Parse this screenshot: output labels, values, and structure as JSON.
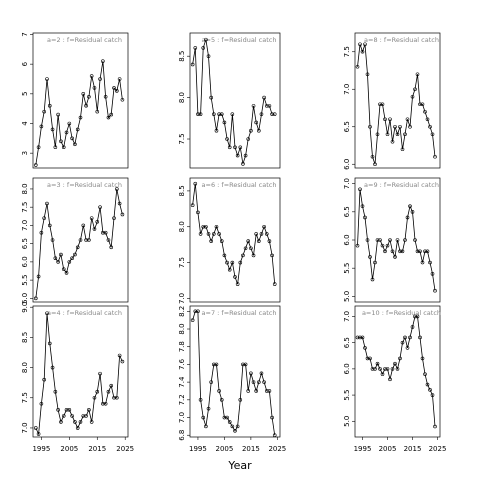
{
  "x_label": "Year",
  "chart_data": [
    {
      "type": "line",
      "title": "a=2 : f=Residual catch",
      "x": [
        1993,
        1994,
        1995,
        1996,
        1997,
        1998,
        1999,
        2000,
        2001,
        2002,
        2003,
        2004,
        2005,
        2006,
        2007,
        2008,
        2009,
        2010,
        2011,
        2012,
        2013,
        2014,
        2015,
        2016,
        2017,
        2018,
        2019,
        2020,
        2021,
        2022,
        2023,
        2024
      ],
      "values": [
        2.6,
        3.2,
        3.9,
        4.4,
        5.5,
        4.6,
        3.8,
        3.2,
        4.3,
        3.4,
        3.2,
        3.7,
        4.0,
        3.5,
        3.3,
        3.8,
        4.2,
        5.0,
        4.6,
        4.9,
        5.6,
        5.2,
        4.4,
        5.5,
        6.1,
        4.9,
        4.2,
        4.3,
        5.2,
        5.1,
        5.5,
        4.8
      ],
      "xlim": [
        1992,
        2026
      ],
      "ylim": [
        2.5,
        7.05
      ],
      "yticks": [
        3,
        4,
        5,
        6,
        7
      ]
    },
    {
      "type": "line",
      "title": "a=5 : f=Residual catch",
      "x": [
        1993,
        1994,
        1995,
        1996,
        1997,
        1998,
        1999,
        2000,
        2001,
        2002,
        2003,
        2004,
        2005,
        2006,
        2007,
        2008,
        2009,
        2010,
        2011,
        2012,
        2013,
        2014,
        2015,
        2016,
        2017,
        2018,
        2019,
        2020,
        2021,
        2022,
        2023,
        2024
      ],
      "values": [
        8.4,
        8.6,
        7.8,
        7.8,
        8.6,
        8.7,
        8.5,
        8.0,
        7.8,
        7.6,
        7.8,
        7.8,
        7.7,
        7.5,
        7.4,
        7.8,
        7.4,
        7.3,
        7.4,
        7.2,
        7.3,
        7.5,
        7.6,
        7.9,
        7.7,
        7.6,
        7.8,
        8.0,
        7.9,
        7.9,
        7.8,
        7.8
      ],
      "xlim": [
        1992,
        2026
      ],
      "ylim": [
        7.15,
        8.78
      ],
      "yticks": [
        7.5,
        {
          "value": 8,
          "label": "8.0"
        },
        8.5
      ]
    },
    {
      "type": "line",
      "title": "a=8 : f=Residual catch",
      "x": [
        1993,
        1994,
        1995,
        1996,
        1997,
        1998,
        1999,
        2000,
        2001,
        2002,
        2003,
        2004,
        2005,
        2006,
        2007,
        2008,
        2009,
        2010,
        2011,
        2012,
        2013,
        2014,
        2015,
        2016,
        2017,
        2018,
        2019,
        2020,
        2021,
        2022,
        2023,
        2024
      ],
      "values": [
        7.3,
        7.6,
        7.5,
        7.6,
        7.2,
        6.5,
        6.1,
        6.0,
        6.4,
        6.8,
        6.8,
        6.6,
        6.4,
        6.6,
        6.3,
        6.5,
        6.4,
        6.5,
        6.2,
        6.4,
        6.6,
        6.5,
        6.9,
        7.0,
        7.2,
        6.8,
        6.8,
        6.7,
        6.6,
        6.5,
        6.4,
        6.1
      ],
      "xlim": [
        1992,
        2026
      ],
      "ylim": [
        5.95,
        7.75
      ],
      "yticks": [
        {
          "value": 6,
          "label": "6.0"
        },
        6.5,
        {
          "value": 7,
          "label": "7.0"
        },
        7.5
      ]
    },
    {
      "type": "line",
      "title": "a=3 : f=Residual catch",
      "x": [
        1993,
        1994,
        1995,
        1996,
        1997,
        1998,
        1999,
        2000,
        2001,
        2002,
        2003,
        2004,
        2005,
        2006,
        2007,
        2008,
        2009,
        2010,
        2011,
        2012,
        2013,
        2014,
        2015,
        2016,
        2017,
        2018,
        2019,
        2020,
        2021,
        2022,
        2023,
        2024
      ],
      "values": [
        5.0,
        5.6,
        6.8,
        7.2,
        7.6,
        7.0,
        6.6,
        6.1,
        6.0,
        6.2,
        5.8,
        5.7,
        6.0,
        6.1,
        6.2,
        6.4,
        6.6,
        7.0,
        6.6,
        6.6,
        7.2,
        6.9,
        7.1,
        7.5,
        6.8,
        6.8,
        6.6,
        6.4,
        7.2,
        8.0,
        7.6,
        7.3
      ],
      "xlim": [
        1992,
        2026
      ],
      "ylim": [
        4.9,
        8.3
      ],
      "yticks": [
        {
          "value": 5,
          "label": "5.0"
        },
        5.5,
        {
          "value": 6,
          "label": "6.0"
        },
        6.5,
        {
          "value": 7,
          "label": "7.0"
        },
        7.5,
        {
          "value": 8,
          "label": "8.0"
        }
      ]
    },
    {
      "type": "line",
      "title": "a=6 : f=Residual catch",
      "x": [
        1993,
        1994,
        1995,
        1996,
        1997,
        1998,
        1999,
        2000,
        2001,
        2002,
        2003,
        2004,
        2005,
        2006,
        2007,
        2008,
        2009,
        2010,
        2011,
        2012,
        2013,
        2014,
        2015,
        2016,
        2017,
        2018,
        2019,
        2020,
        2021,
        2022,
        2023,
        2024
      ],
      "values": [
        8.3,
        8.6,
        8.2,
        7.9,
        8.0,
        8.0,
        7.9,
        7.8,
        7.9,
        8.0,
        7.9,
        7.8,
        7.6,
        7.5,
        7.4,
        7.5,
        7.3,
        7.2,
        7.5,
        7.6,
        7.7,
        7.8,
        7.7,
        7.6,
        7.9,
        7.8,
        7.9,
        8.0,
        7.9,
        7.8,
        7.6,
        7.2
      ],
      "xlim": [
        1992,
        2026
      ],
      "ylim": [
        6.95,
        8.68
      ],
      "yticks": [
        {
          "value": 7,
          "label": "7.0"
        },
        7.5,
        {
          "value": 8,
          "label": "8.0"
        },
        8.5
      ]
    },
    {
      "type": "line",
      "title": "a=9 : f=Residual catch",
      "x": [
        1993,
        1994,
        1995,
        1996,
        1997,
        1998,
        1999,
        2000,
        2001,
        2002,
        2003,
        2004,
        2005,
        2006,
        2007,
        2008,
        2009,
        2010,
        2011,
        2012,
        2013,
        2014,
        2015,
        2016,
        2017,
        2018,
        2019,
        2020,
        2021,
        2022,
        2023,
        2024
      ],
      "values": [
        5.9,
        6.9,
        6.6,
        6.4,
        6.0,
        5.7,
        5.3,
        5.6,
        6.0,
        6.0,
        5.9,
        5.8,
        5.9,
        6.0,
        5.8,
        5.7,
        6.0,
        5.8,
        5.8,
        6.0,
        6.4,
        6.6,
        6.5,
        6.0,
        5.8,
        5.8,
        5.6,
        5.8,
        5.8,
        5.6,
        5.4,
        5.1
      ],
      "xlim": [
        1992,
        2026
      ],
      "ylim": [
        4.9,
        7.1
      ],
      "yticks": [
        {
          "value": 5,
          "label": "5.0"
        },
        5.5,
        {
          "value": 6,
          "label": "6.0"
        },
        6.5,
        {
          "value": 7,
          "label": "7.0"
        }
      ]
    },
    {
      "type": "line",
      "title": "a=4 : f=Residual catch",
      "x": [
        1993,
        1994,
        1995,
        1996,
        1997,
        1998,
        1999,
        2000,
        2001,
        2002,
        2003,
        2004,
        2005,
        2006,
        2007,
        2008,
        2009,
        2010,
        2011,
        2012,
        2013,
        2014,
        2015,
        2016,
        2017,
        2018,
        2019,
        2020,
        2021,
        2022,
        2023,
        2024
      ],
      "values": [
        7.0,
        6.9,
        7.4,
        7.8,
        8.9,
        8.4,
        8.0,
        7.6,
        7.3,
        7.1,
        7.2,
        7.3,
        7.3,
        7.2,
        7.1,
        7.0,
        7.1,
        7.2,
        7.2,
        7.3,
        7.1,
        7.5,
        7.6,
        7.9,
        7.4,
        7.4,
        7.6,
        7.7,
        7.5,
        7.5,
        8.2,
        8.1
      ],
      "xlim": [
        1992,
        2026
      ],
      "ylim": [
        6.85,
        9.02
      ],
      "yticks": [
        {
          "value": 7,
          "label": "7.0"
        },
        7.5,
        {
          "value": 8,
          "label": "8.0"
        },
        8.5,
        {
          "value": 9,
          "label": "9.0"
        }
      ],
      "xticks": [
        1995,
        2005,
        2015,
        2025
      ]
    },
    {
      "type": "line",
      "title": "a=7 : f=Residual catch",
      "x": [
        1993,
        1994,
        1995,
        1996,
        1997,
        1998,
        1999,
        2000,
        2001,
        2002,
        2003,
        2004,
        2005,
        2006,
        2007,
        2008,
        2009,
        2010,
        2011,
        2012,
        2013,
        2014,
        2015,
        2016,
        2017,
        2018,
        2019,
        2020,
        2021,
        2022,
        2023,
        2024
      ],
      "values": [
        8.1,
        8.2,
        8.2,
        7.2,
        7.0,
        6.9,
        7.1,
        7.4,
        7.6,
        7.6,
        7.3,
        7.2,
        7.0,
        7.0,
        6.95,
        6.9,
        6.85,
        6.9,
        7.2,
        7.6,
        7.6,
        7.3,
        7.5,
        7.4,
        7.3,
        7.4,
        7.5,
        7.4,
        7.3,
        7.3,
        7.0,
        6.8
      ],
      "xlim": [
        1992,
        2026
      ],
      "ylim": [
        6.78,
        8.26
      ],
      "yticks": [
        6.8,
        {
          "value": 7,
          "label": "7.0"
        },
        7.2,
        7.4,
        7.6,
        7.8,
        {
          "value": 8,
          "label": "8.0"
        },
        8.2
      ],
      "xticks": [
        1995,
        2005,
        2015,
        2025
      ]
    },
    {
      "type": "line",
      "title": "a=10 : f=Residual catch",
      "x": [
        1993,
        1994,
        1995,
        1996,
        1997,
        1998,
        1999,
        2000,
        2001,
        2002,
        2003,
        2004,
        2005,
        2006,
        2007,
        2008,
        2009,
        2010,
        2011,
        2012,
        2013,
        2014,
        2015,
        2016,
        2017,
        2018,
        2019,
        2020,
        2021,
        2022,
        2023,
        2024
      ],
      "values": [
        6.6,
        6.6,
        6.6,
        6.4,
        6.2,
        6.2,
        6.0,
        6.0,
        6.1,
        6.0,
        5.9,
        6.0,
        6.0,
        5.8,
        6.0,
        6.1,
        6.0,
        6.2,
        6.5,
        6.6,
        6.4,
        6.6,
        6.8,
        7.0,
        7.0,
        6.6,
        6.2,
        5.9,
        5.7,
        5.6,
        5.5,
        4.9
      ],
      "xlim": [
        1992,
        2026
      ],
      "ylim": [
        4.7,
        7.2
      ],
      "yticks": [
        {
          "value": 5,
          "label": "5.0"
        },
        5.5,
        {
          "value": 6,
          "label": "6.0"
        },
        6.5,
        {
          "value": 7,
          "label": "7.0"
        }
      ],
      "xticks": [
        1995,
        2005,
        2015,
        2025
      ]
    }
  ]
}
